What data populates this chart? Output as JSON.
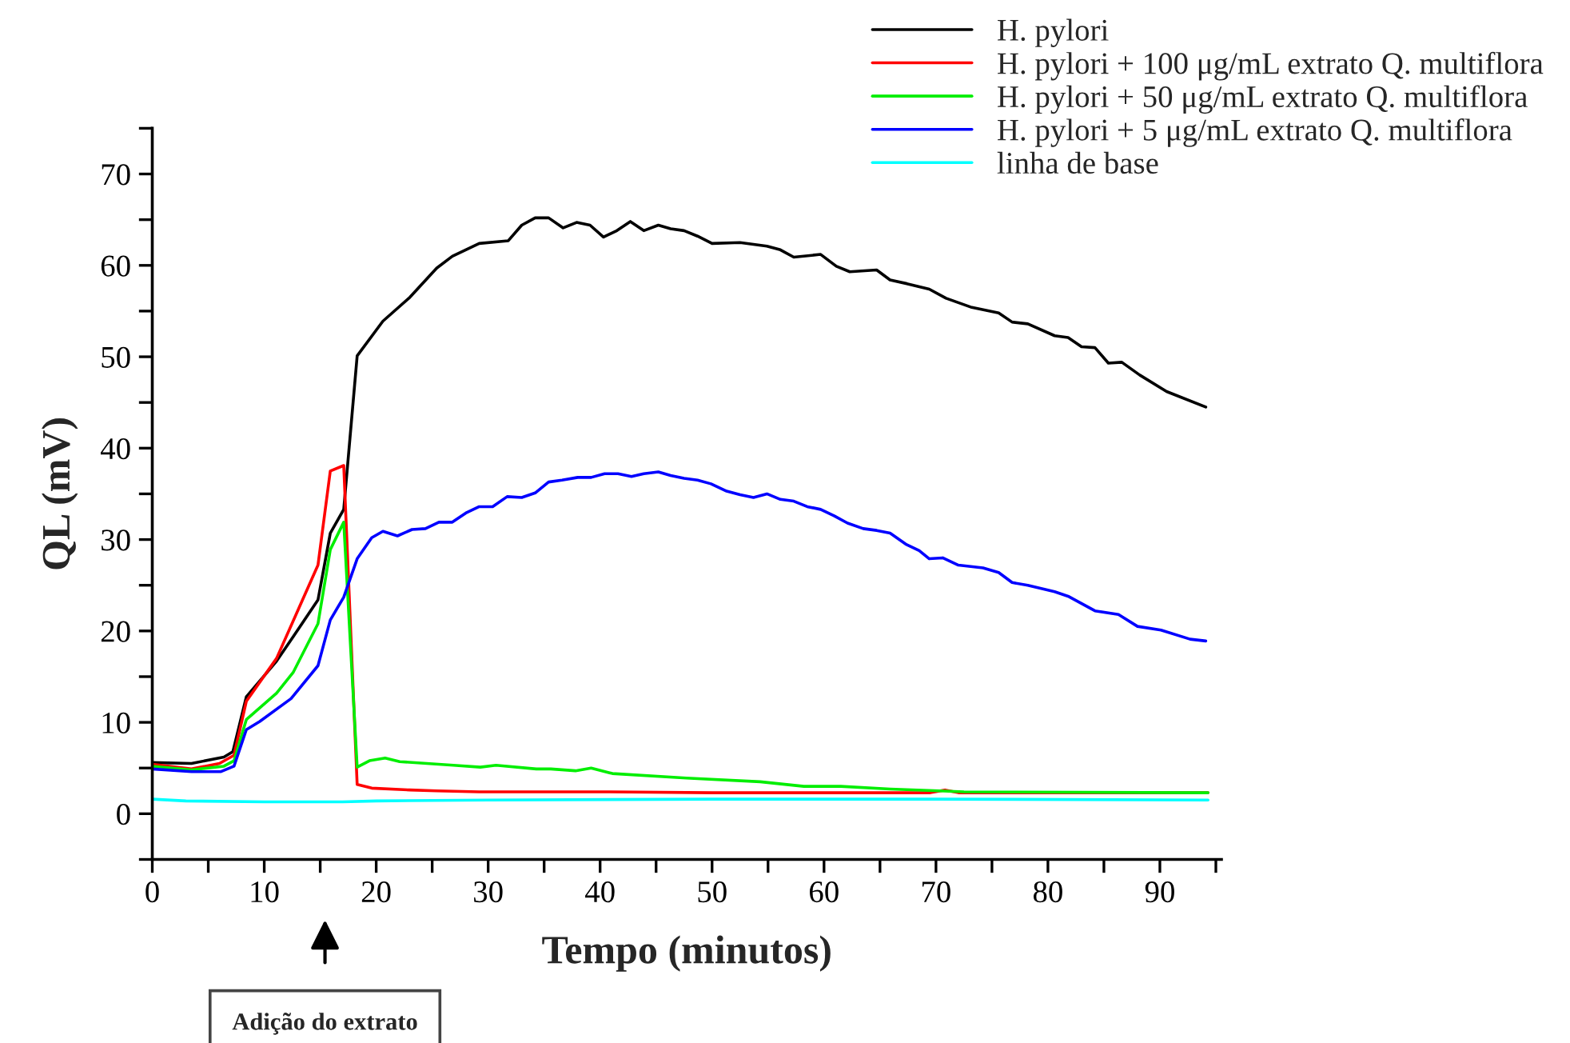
{
  "chart_data": {
    "type": "line",
    "xlabel": "Tempo (minutos)",
    "ylabel": "QL (mV)",
    "xlim": [
      0,
      95.5
    ],
    "ylim": [
      -5,
      75
    ],
    "xticks": [
      0,
      {
        "value": 5,
        "label": null
      },
      10,
      {
        "value": 15,
        "label": null
      },
      20,
      {
        "value": 25,
        "label": null
      },
      30,
      {
        "value": 35,
        "label": null
      },
      40,
      {
        "value": 45,
        "label": null
      },
      50,
      {
        "value": 55,
        "label": null
      },
      60,
      {
        "value": 65,
        "label": null
      },
      70,
      {
        "value": 75,
        "label": null
      },
      80,
      {
        "value": 85,
        "label": null
      },
      90,
      {
        "value": 95,
        "label": null
      }
    ],
    "yticks": [
      {
        "value": -5,
        "label": null
      },
      0,
      {
        "value": 5,
        "label": null
      },
      10,
      {
        "value": 15,
        "label": null
      },
      20,
      {
        "value": 25,
        "label": null
      },
      30,
      {
        "value": 35,
        "label": null
      },
      40,
      {
        "value": 45,
        "label": null
      },
      50,
      {
        "value": 55,
        "label": null
      },
      60,
      {
        "value": 65,
        "label": null
      },
      70,
      {
        "value": 75,
        "label": null
      }
    ],
    "grid": false,
    "legend": "top right",
    "marker": "none",
    "line_style": "solid",
    "annotations": [
      "Adição do extrato"
    ],
    "series": [
      {
        "name": "H. pylori",
        "color": "#000000",
        "x": [
          0,
          3.5,
          6.4,
          7.2,
          8.4,
          11.1,
          12.6,
          14.8,
          15.9,
          17.1,
          18.3,
          20.6,
          23,
          25.4,
          26.8,
          29.2,
          31.8,
          33,
          34.2,
          35.4,
          36.7,
          37.9,
          39.1,
          40.3,
          41.5,
          42.7,
          43.9,
          45.2,
          46.3,
          47.5,
          48.7,
          50,
          52.5,
          54.9,
          56.1,
          57.3,
          59.7,
          61.1,
          62.3,
          64.7,
          65.9,
          67.4,
          69.4,
          70.9,
          73.2,
          75.6,
          76.8,
          78.2,
          80.6,
          81.8,
          83,
          84.2,
          85.4,
          86.6,
          88.2,
          90.6,
          94.1
        ],
        "values": [
          5.6,
          5.5,
          6.2,
          6.8,
          12.8,
          16.7,
          19.4,
          23.4,
          30.7,
          33.3,
          50.1,
          53.9,
          56.5,
          59.7,
          61.0,
          62.4,
          62.7,
          64.4,
          65.2,
          65.2,
          64.1,
          64.7,
          64.4,
          63.1,
          63.8,
          64.8,
          63.8,
          64.4,
          64.0,
          63.8,
          63.2,
          62.4,
          62.5,
          62.1,
          61.7,
          60.9,
          61.2,
          59.9,
          59.3,
          59.5,
          58.4,
          58.0,
          57.4,
          56.4,
          55.4,
          54.8,
          53.8,
          53.6,
          52.3,
          52.1,
          51.1,
          51.0,
          49.3,
          49.4,
          48.0,
          46.2,
          44.5
        ]
      },
      {
        "name": "H. pylori + 100 μg/mL extrato Q. multiflora",
        "color": "#ff0000",
        "x": [
          0,
          3.5,
          6,
          7.3,
          8.4,
          11.1,
          14.8,
          15.9,
          17.1,
          18.3,
          19.6,
          23,
          25.4,
          29.2,
          40,
          50,
          60,
          69.5,
          70.8,
          72,
          80,
          94.3
        ],
        "values": [
          5.4,
          4.9,
          5.5,
          6.4,
          12.3,
          17.0,
          27.2,
          37.5,
          38.1,
          3.2,
          2.8,
          2.6,
          2.5,
          2.4,
          2.4,
          2.3,
          2.3,
          2.3,
          2.6,
          2.3,
          2.3,
          2.3
        ]
      },
      {
        "name": "H. pylori + 50 μg/mL extrato Q. multiflora",
        "color": "#00ee00",
        "x": [
          0,
          3.5,
          6.4,
          7.3,
          8.4,
          11.1,
          12.6,
          14.8,
          15.9,
          17.1,
          18.3,
          19.4,
          20.8,
          22.1,
          26.9,
          29.3,
          30.7,
          34.3,
          35.6,
          37.8,
          39.2,
          41.1,
          47.7,
          54.3,
          58.2,
          61.5,
          65.9,
          70.3,
          72.5,
          94.3
        ],
        "values": [
          5.2,
          4.8,
          5.2,
          5.8,
          10.3,
          13.2,
          15.5,
          20.8,
          28.9,
          31.9,
          5.1,
          5.8,
          6.1,
          5.7,
          5.3,
          5.1,
          5.3,
          4.9,
          4.9,
          4.7,
          5.0,
          4.4,
          3.9,
          3.5,
          3.0,
          3.0,
          2.7,
          2.5,
          2.4,
          2.3
        ]
      },
      {
        "name": "H. pylori + 5 μg/mL extrato Q. multiflora",
        "color": "#0000ff",
        "x": [
          0,
          3.5,
          6.1,
          7.3,
          8.4,
          9.6,
          12.4,
          14.8,
          15.9,
          17.1,
          18.3,
          19.6,
          20.6,
          21.9,
          23.2,
          24.4,
          25.6,
          26.8,
          28,
          29.2,
          30.4,
          31.7,
          33,
          34.2,
          35.4,
          36.6,
          38,
          39.2,
          40.4,
          41.6,
          42.8,
          43.9,
          45.2,
          46.3,
          47.5,
          48.7,
          49.9,
          51.3,
          52.5,
          53.7,
          54.9,
          56.1,
          57.3,
          58.5,
          59.7,
          60.9,
          62.1,
          63.5,
          64.7,
          65.9,
          67.3,
          68.5,
          69.4,
          70.6,
          72,
          74.2,
          75.6,
          76.8,
          78.2,
          80.6,
          81.8,
          84.2,
          86.3,
          88,
          90.1,
          92.7,
          94.1
        ],
        "values": [
          4.9,
          4.6,
          4.6,
          5.2,
          9.2,
          10.1,
          12.6,
          16.2,
          21.2,
          23.7,
          27.9,
          30.2,
          30.9,
          30.4,
          31.1,
          31.2,
          31.9,
          31.9,
          32.9,
          33.6,
          33.6,
          34.7,
          34.6,
          35.1,
          36.3,
          36.5,
          36.8,
          36.8,
          37.2,
          37.2,
          36.9,
          37.2,
          37.4,
          37.0,
          36.7,
          36.5,
          36.1,
          35.3,
          34.9,
          34.6,
          35.0,
          34.4,
          34.2,
          33.6,
          33.3,
          32.6,
          31.8,
          31.2,
          31.0,
          30.7,
          29.5,
          28.8,
          27.9,
          28.0,
          27.2,
          26.9,
          26.4,
          25.3,
          25.0,
          24.3,
          23.8,
          22.2,
          21.8,
          20.5,
          20.1,
          19.1,
          18.9
        ]
      },
      {
        "name": "linha de base",
        "color": "#00ffff",
        "x": [
          0,
          3,
          10,
          17,
          20,
          30,
          50,
          70,
          94.3
        ],
        "values": [
          1.6,
          1.4,
          1.3,
          1.3,
          1.4,
          1.5,
          1.6,
          1.6,
          1.5
        ]
      }
    ]
  }
}
